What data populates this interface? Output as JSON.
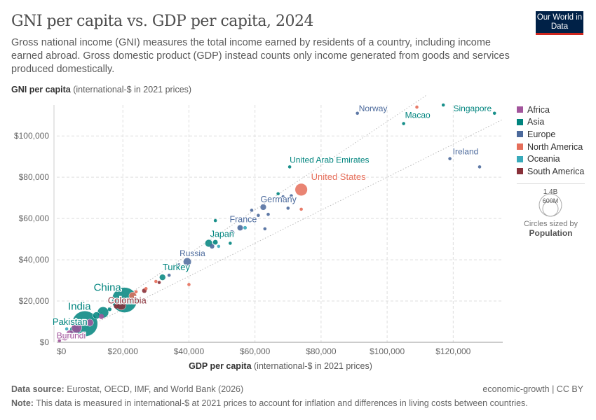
{
  "header": {
    "title": "GNI per capita vs. GDP per capita, 2024",
    "subtitle": "Gross national income (GNI) measures the total income earned by residents of a country, including income earned abroad. Gross domestic product (GDP) instead counts only income generated from goods and services produced domestically.",
    "logo": "Our World in Data"
  },
  "chart_data": {
    "type": "scatter",
    "title": "GNI per capita vs. GDP per capita, 2024",
    "xlabel_bold": "GDP per capita",
    "xlabel_rest": "(international-$ in 2021 prices)",
    "ylabel_bold": "GNI per capita",
    "ylabel_rest": "(international-$ in 2021 prices)",
    "xlim": [
      0,
      135000
    ],
    "ylim": [
      0,
      115000
    ],
    "xticks": [
      0,
      20000,
      40000,
      60000,
      80000,
      100000,
      120000
    ],
    "xtick_labels": [
      "$0",
      "$20,000",
      "$40,000",
      "$60,000",
      "$80,000",
      "$100,000",
      "$120,000"
    ],
    "yticks": [
      0,
      20000,
      40000,
      60000,
      80000,
      100000
    ],
    "ytick_labels": [
      "$0",
      "$20,000",
      "$40,000",
      "$60,000",
      "$80,000",
      "$100,000"
    ],
    "grid": true,
    "colors": {
      "Africa": "#a2559c",
      "Asia": "#00847e",
      "Europe": "#4c6a9c",
      "North America": "#e56e5a",
      "Oceania": "#38aaba",
      "South America": "#883039"
    },
    "legend": [
      "Africa",
      "Asia",
      "Europe",
      "North America",
      "Oceania",
      "South America"
    ],
    "legend_placement": "right",
    "size_legend": {
      "values": [
        "1.4B",
        "600M"
      ],
      "caption": "Circles sized by",
      "variable": "Population"
    },
    "points": [
      {
        "label": "Norway",
        "gdp": 91000,
        "gni": 111000,
        "pop": 5.5,
        "c": "Europe"
      },
      {
        "label": "Macao",
        "gdp": 105000,
        "gni": 106000,
        "pop": 0.7,
        "c": "Asia"
      },
      {
        "label": "Singapore",
        "gdp": 132500,
        "gni": 111000,
        "pop": 6,
        "c": "Asia"
      },
      {
        "label": "Ireland",
        "gdp": 119000,
        "gni": 89000,
        "pop": 5.2,
        "c": "Europe"
      },
      {
        "label": "United Arab Emirates",
        "gdp": 70500,
        "gni": 85000,
        "pop": 10,
        "c": "Asia"
      },
      {
        "label": "United States",
        "gdp": 74000,
        "gni": 74000,
        "pop": 340,
        "c": "North America"
      },
      {
        "label": "Germany",
        "gdp": 62500,
        "gni": 65500,
        "pop": 84,
        "c": "Europe"
      },
      {
        "label": "France",
        "gdp": 55500,
        "gni": 55500,
        "pop": 68,
        "c": "Europe"
      },
      {
        "label": "Japan",
        "gdp": 46000,
        "gni": 48000,
        "pop": 124,
        "c": "Asia"
      },
      {
        "label": "Russia",
        "gdp": 39500,
        "gni": 39000,
        "pop": 144,
        "c": "Europe"
      },
      {
        "label": "Turkey",
        "gdp": 32000,
        "gni": 31500,
        "pop": 85,
        "c": "Asia"
      },
      {
        "label": "China",
        "gdp": 20500,
        "gni": 20500,
        "pop": 1410,
        "c": "Asia"
      },
      {
        "label": "Colombia",
        "gdp": 18000,
        "gni": 17500,
        "pop": 52,
        "c": "South America"
      },
      {
        "label": "India",
        "gdp": 8500,
        "gni": 9000,
        "pop": 1450,
        "c": "Asia"
      },
      {
        "label": "Pakistan",
        "gdp": 5500,
        "gni": 5700,
        "pop": 250,
        "c": "Asia"
      },
      {
        "label": "Burundi",
        "gdp": 800,
        "gni": 800,
        "pop": 14,
        "c": "Africa"
      },
      {
        "label": "",
        "gdp": 109000,
        "gni": 114000,
        "pop": 0.5,
        "c": "North America"
      },
      {
        "label": "",
        "gdp": 117000,
        "gni": 115000,
        "pop": 0.5,
        "c": "Asia"
      },
      {
        "label": "",
        "gdp": 128000,
        "gni": 85000,
        "pop": 0.7,
        "c": "Europe"
      },
      {
        "label": "",
        "gdp": 74000,
        "gni": 64500,
        "pop": 1,
        "c": "North America"
      },
      {
        "label": "",
        "gdp": 67000,
        "gni": 72000,
        "pop": 2,
        "c": "Asia"
      },
      {
        "label": "",
        "gdp": 68500,
        "gni": 70500,
        "pop": 9,
        "c": "Europe"
      },
      {
        "label": "",
        "gdp": 71000,
        "gni": 71000,
        "pop": 17,
        "c": "Europe"
      },
      {
        "label": "",
        "gdp": 70000,
        "gni": 65000,
        "pop": 5,
        "c": "Europe"
      },
      {
        "label": "",
        "gdp": 64000,
        "gni": 62000,
        "pop": 11,
        "c": "Europe"
      },
      {
        "label": "",
        "gdp": 59000,
        "gni": 64000,
        "pop": 9,
        "c": "Europe"
      },
      {
        "label": "",
        "gdp": 61000,
        "gni": 61500,
        "pop": 6,
        "c": "Europe"
      },
      {
        "label": "",
        "gdp": 63000,
        "gni": 55000,
        "pop": 1,
        "c": "Europe"
      },
      {
        "label": "",
        "gdp": 57000,
        "gni": 55500,
        "pop": 27,
        "c": "Oceania"
      },
      {
        "label": "",
        "gdp": 48000,
        "gni": 59000,
        "pop": 1,
        "c": "Asia"
      },
      {
        "label": "",
        "gdp": 53000,
        "gni": 53000,
        "pop": 60,
        "c": "Europe"
      },
      {
        "label": "",
        "gdp": 52500,
        "gni": 48000,
        "pop": 3,
        "c": "Asia"
      },
      {
        "label": "",
        "gdp": 49000,
        "gni": 46500,
        "pop": 5,
        "c": "Oceania"
      },
      {
        "label": "",
        "gdp": 47000,
        "gni": 46500,
        "pop": 47,
        "c": "Europe"
      },
      {
        "label": "",
        "gdp": 48000,
        "gni": 48500,
        "pop": 51,
        "c": "Asia"
      },
      {
        "label": "",
        "gdp": 37000,
        "gni": 37500,
        "pop": 10,
        "c": "Europe"
      },
      {
        "label": "",
        "gdp": 40000,
        "gni": 28000,
        "pop": 1,
        "c": "North America"
      },
      {
        "label": "",
        "gdp": 34000,
        "gni": 32500,
        "pop": 3,
        "c": "Europe"
      },
      {
        "label": "",
        "gdp": 30000,
        "gni": 29500,
        "pop": 3,
        "c": "North America"
      },
      {
        "label": "",
        "gdp": 31000,
        "gni": 29000,
        "pop": 3,
        "c": "South America"
      },
      {
        "label": "",
        "gdp": 27000,
        "gni": 26000,
        "pop": 4,
        "c": "North America"
      },
      {
        "label": "",
        "gdp": 26500,
        "gni": 25000,
        "pop": 45,
        "c": "South America"
      },
      {
        "label": "",
        "gdp": 24000,
        "gni": 24500,
        "pop": 7,
        "c": "North America"
      },
      {
        "label": "",
        "gdp": 23000,
        "gni": 22500,
        "pop": 130,
        "c": "North America"
      },
      {
        "label": "",
        "gdp": 19500,
        "gni": 18000,
        "pop": 211,
        "c": "South America"
      },
      {
        "label": "",
        "gdp": 16000,
        "gni": 16000,
        "pop": 30,
        "c": "Asia"
      },
      {
        "label": "",
        "gdp": 14000,
        "gni": 14500,
        "pop": 278,
        "c": "Asia"
      },
      {
        "label": "",
        "gdp": 12000,
        "gni": 13000,
        "pop": 113,
        "c": "Asia"
      },
      {
        "label": "",
        "gdp": 13500,
        "gni": 12500,
        "pop": 60,
        "c": "Africa"
      },
      {
        "label": "",
        "gdp": 10000,
        "gni": 9500,
        "pop": 116,
        "c": "Africa"
      },
      {
        "label": "",
        "gdp": 6000,
        "gni": 7000,
        "pop": 232,
        "c": "Africa"
      },
      {
        "label": "",
        "gdp": 4000,
        "gni": 4000,
        "pop": 135,
        "c": "Africa"
      },
      {
        "label": "",
        "gdp": 3000,
        "gni": 6500,
        "pop": 10,
        "c": "Oceania"
      },
      {
        "label": "",
        "gdp": 2500,
        "gni": 2500,
        "pop": 110,
        "c": "Africa"
      }
    ]
  },
  "footer": {
    "source_label": "Data source:",
    "source": "Eurostat, OECD, IMF, and World Bank (2026)",
    "license": "economic-growth | CC BY",
    "note_label": "Note:",
    "note": "This data is measured in international-$ at 2021 prices to account for inflation and differences in living costs between countries."
  }
}
